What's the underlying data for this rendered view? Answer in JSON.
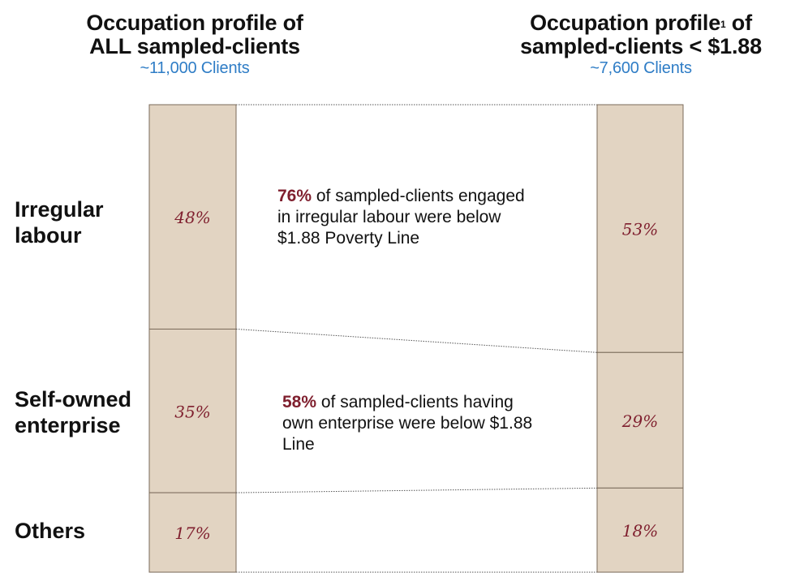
{
  "header": {
    "left": {
      "title_line1": "Occupation profile of",
      "title_line2": "ALL sampled-clients",
      "subtitle": "~11,000 Clients"
    },
    "right": {
      "title_line1_a": "Occupation profile",
      "footnote_marker": "1",
      "title_line1_b": " of",
      "title_line2": "sampled-clients < $1.88",
      "subtitle": "~7,600 Clients"
    }
  },
  "rows": [
    {
      "label_line1": "Irregular",
      "label_line2": "labour"
    },
    {
      "label_line1": "Self-owned",
      "label_line2": "enterprise"
    },
    {
      "label_line1": "Others",
      "label_line2": ""
    }
  ],
  "notes": [
    {
      "highlight": "76%",
      "text_line1": " of sampled-clients engaged",
      "text_line2": "in irregular labour were below",
      "text_line3": "$1.88 Poverty  Line"
    },
    {
      "highlight": "58%",
      "text_line1": " of sampled-clients having",
      "text_line2": "own enterprise were below $1.88",
      "text_line3": "Line"
    }
  ],
  "colors": {
    "bar_fill": "#e2d4c2",
    "bar_stroke": "#7a6a5a",
    "percent_text": "#7f1f2e",
    "highlight_text": "#7f1f2e",
    "subtitle_text": "#2f7dc6",
    "connector": "#555555"
  },
  "chart_data": {
    "type": "bar",
    "subtype": "100% stacked columns with connectors",
    "categories": [
      "Irregular labour",
      "Self-owned enterprise",
      "Others"
    ],
    "series": [
      {
        "name": "Occupation profile of ALL sampled-clients",
        "values": [
          48,
          35,
          17
        ],
        "labels": [
          "48%",
          "35%",
          "17%"
        ]
      },
      {
        "name": "Occupation profile of sampled-clients < $1.88",
        "values": [
          53,
          29,
          18
        ],
        "labels": [
          "53%",
          "29%",
          "18%"
        ]
      }
    ],
    "title": "",
    "xlabel": "",
    "ylabel": "",
    "ylim": [
      0,
      100
    ]
  }
}
